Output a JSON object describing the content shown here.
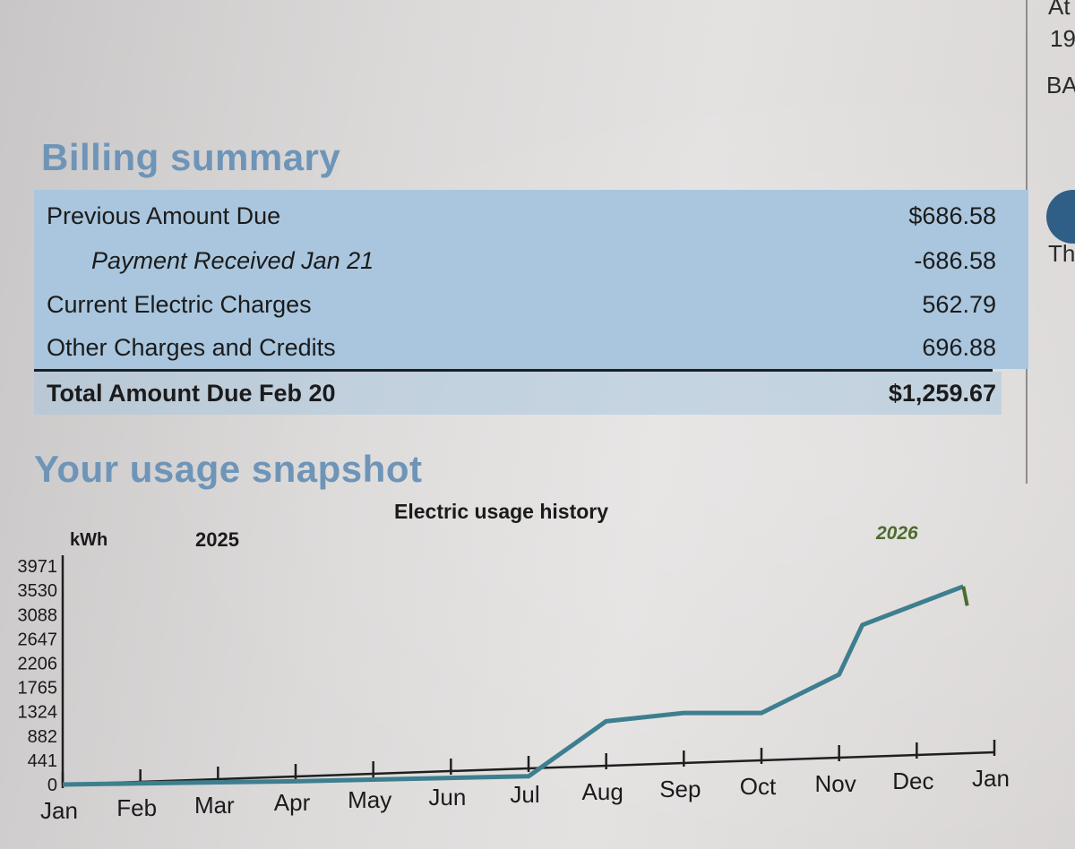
{
  "edge_fragments": [
    "At",
    "19",
    "BA",
    "Th"
  ],
  "billing": {
    "title": "Billing summary",
    "rows": [
      {
        "label": "Previous Amount Due",
        "amount": "$686.58"
      },
      {
        "label": "Payment Received Jan 21",
        "amount": "-686.58"
      },
      {
        "label": "Current Electric Charges",
        "amount": "562.79"
      },
      {
        "label": "Other Charges and Credits",
        "amount": "696.88"
      }
    ],
    "total": {
      "label": "Total Amount Due Feb 20",
      "amount": "$1,259.67"
    }
  },
  "usage": {
    "title": "Your usage snapshot"
  },
  "chart_data": {
    "type": "line",
    "title": "Electric usage history",
    "ylabel": "kWh",
    "year_labels": [
      "2025",
      "2026"
    ],
    "categories": [
      "Jan",
      "Feb",
      "Mar",
      "Apr",
      "May",
      "Jun",
      "Jul",
      "Aug",
      "Sep",
      "Oct",
      "Nov",
      "Dec",
      "Jan"
    ],
    "y_ticks": [
      0,
      441,
      882,
      1324,
      1765,
      2206,
      2647,
      3088,
      3530,
      3971
    ],
    "ylim": [
      0,
      3971
    ],
    "series": [
      {
        "x": [
          "Jan",
          "Feb",
          "Mar",
          "Apr",
          "May",
          "Jun",
          "Jul",
          "Aug",
          "Sep",
          "Oct",
          "Nov",
          "Nov",
          "Dec"
        ],
        "x_offset": [
          0,
          0,
          0,
          0,
          0,
          0,
          0,
          0,
          0,
          0,
          0,
          0.3,
          0.6
        ],
        "values": [
          0,
          20,
          40,
          60,
          90,
          120,
          150,
          1150,
          1300,
          1300,
          2000,
          2900,
          3600
        ]
      },
      {
        "x": [
          "Dec",
          "Jan"
        ],
        "values": [
          3600,
          3250
        ]
      }
    ],
    "colors": {
      "2025": "#3d7f8f",
      "2026": "#4d6b2e"
    },
    "grid": false
  }
}
